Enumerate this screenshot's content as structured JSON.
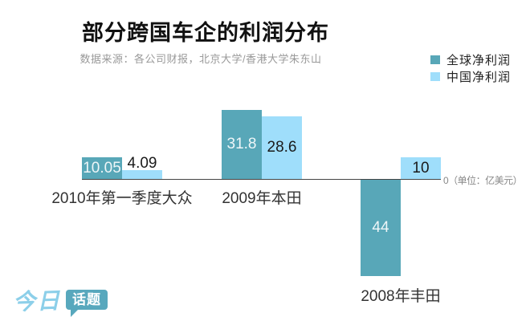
{
  "chart_data": {
    "type": "bar",
    "title": "部分跨国车企的利润分布",
    "subtitle": "数据来源：各公司财报，北京大学/香港大学朱东山",
    "unit_axis_label": "0（单位：亿美元）",
    "categories": [
      "2010年第一季度大众",
      "2009年本田",
      "2008年丰田"
    ],
    "series": [
      {
        "name": "全球净利润",
        "color": "#58a7b8",
        "values": [
          10.05,
          31.8,
          -44
        ],
        "value_labels": [
          "10.05",
          "31.8",
          "44"
        ],
        "inside_label_color": "#eef6f8"
      },
      {
        "name": "中国净利润",
        "color": "#9fdefb",
        "values": [
          4.09,
          28.6,
          10
        ],
        "value_labels": [
          "4.09",
          "28.6",
          "10"
        ],
        "inside_label_color": "#1a1a1a"
      }
    ],
    "baseline": 0,
    "grid": false,
    "legend_position": "top-right",
    "ylim": [
      -44,
      31.8
    ]
  },
  "logo": {
    "brand": "今日",
    "badge": "话题",
    "brand_color": "#8ccfe9",
    "badge_bg": "#58a8bd"
  },
  "colors": {
    "axis": "#444444",
    "title": "#111111",
    "subtitle": "#999999"
  }
}
